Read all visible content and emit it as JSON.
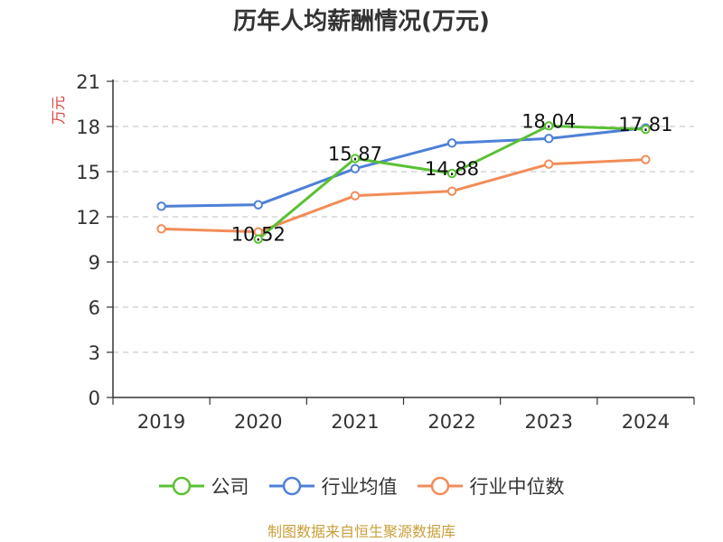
{
  "chart_data": {
    "type": "line",
    "title": "历年人均薪酬情况(万元)",
    "ylabel": "万元",
    "xlabel": "",
    "categories": [
      "2019",
      "2020",
      "2021",
      "2022",
      "2023",
      "2024"
    ],
    "ylim": [
      0,
      21
    ],
    "yticks": [
      0,
      3,
      6,
      9,
      12,
      15,
      18,
      21
    ],
    "grid": true,
    "legend_position": "bottom",
    "series": [
      {
        "name": "公司",
        "color": "#5ac034",
        "values": [
          null,
          10.52,
          15.87,
          14.88,
          18.04,
          17.81
        ],
        "labels": [
          "",
          "10.52",
          "15.87",
          "14.88",
          "18.04",
          "17.81"
        ]
      },
      {
        "name": "行业均值",
        "color": "#4e80d6",
        "values": [
          12.7,
          12.8,
          15.2,
          16.9,
          17.2,
          17.9
        ],
        "labels": [
          "",
          "",
          "",
          "",
          "",
          ""
        ]
      },
      {
        "name": "行业中位数",
        "color": "#f28c58",
        "values": [
          11.2,
          11.0,
          13.4,
          13.7,
          15.5,
          15.8
        ],
        "labels": [
          "",
          "",
          "",
          "",
          "",
          ""
        ]
      }
    ]
  },
  "footer": "制图数据来自恒生聚源数据库"
}
